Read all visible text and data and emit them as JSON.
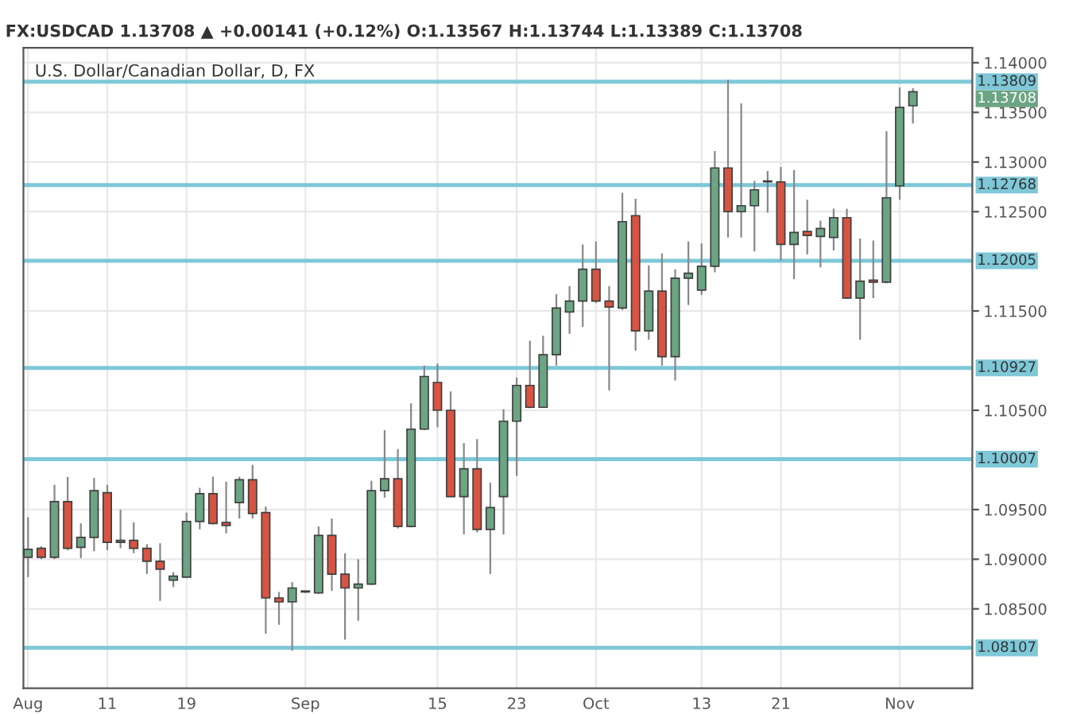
{
  "chart_data": {
    "type": "candlestick",
    "title": "U.S. Dollar/Canadian Dollar, D, FX",
    "subtitle": "FX:USDCAD 1.13708 ▲ +0.00141 (+0.12%) O:1.13567 H:1.13744 L:1.13389 C:1.13708",
    "categories": [
      "Aug",
      null,
      null,
      null,
      null,
      null,
      "11",
      null,
      null,
      null,
      null,
      null,
      "19",
      null,
      null,
      null,
      null,
      null,
      null,
      null,
      null,
      "Sep",
      null,
      null,
      null,
      null,
      null,
      null,
      null,
      null,
      null,
      "15",
      null,
      null,
      null,
      null,
      null,
      "23",
      null,
      null,
      null,
      null,
      null,
      "Oct",
      null,
      null,
      null,
      null,
      null,
      null,
      null,
      "13",
      null,
      null,
      null,
      null,
      null,
      "21",
      null,
      null,
      null,
      null,
      null,
      null,
      null,
      null,
      "Nov",
      null
    ],
    "ohlc": [
      [
        1.0902,
        1.0942,
        1.0882,
        1.091
      ],
      [
        1.0911,
        1.0913,
        1.09,
        1.0902
      ],
      [
        1.0902,
        1.0975,
        1.09,
        1.0958
      ],
      [
        1.0958,
        1.0983,
        1.0909,
        1.0911
      ],
      [
        1.0912,
        1.0936,
        1.0901,
        1.0922
      ],
      [
        1.0922,
        1.0982,
        1.0908,
        1.0969
      ],
      [
        1.0967,
        1.0975,
        1.0909,
        1.0917
      ],
      [
        1.0917,
        1.095,
        1.0911,
        1.0919
      ],
      [
        1.0919,
        1.0937,
        1.0906,
        1.0911
      ],
      [
        1.0911,
        1.0915,
        1.0885,
        1.0898
      ],
      [
        1.0898,
        1.0916,
        1.0858,
        1.089
      ],
      [
        1.0879,
        1.0887,
        1.0872,
        1.0883
      ],
      [
        1.0882,
        1.0947,
        1.0881,
        1.0938
      ],
      [
        1.0938,
        1.0972,
        1.093,
        1.0966
      ],
      [
        1.0966,
        1.0983,
        1.0935,
        1.0936
      ],
      [
        1.0937,
        1.0978,
        1.0926,
        1.0934
      ],
      [
        1.0957,
        1.0983,
        1.0941,
        1.098
      ],
      [
        1.098,
        1.0995,
        1.0941,
        1.0946
      ],
      [
        1.0947,
        1.0953,
        1.0825,
        1.0861
      ],
      [
        1.0861,
        1.0867,
        1.0834,
        1.0857
      ],
      [
        1.0857,
        1.0877,
        1.0808,
        1.0871
      ],
      [
        1.0867,
        1.0868,
        1.0866,
        1.0868
      ],
      [
        1.0866,
        1.0933,
        1.0865,
        1.0924
      ],
      [
        1.0924,
        1.0941,
        1.0868,
        1.0885
      ],
      [
        1.0885,
        1.0906,
        1.0819,
        1.0871
      ],
      [
        1.0871,
        1.09,
        1.0838,
        1.0875
      ],
      [
        1.0875,
        1.0979,
        1.0874,
        1.0969
      ],
      [
        1.0969,
        1.103,
        1.0962,
        1.0981
      ],
      [
        1.0981,
        1.1011,
        1.0931,
        1.0933
      ],
      [
        1.0933,
        1.1057,
        1.0932,
        1.1031
      ],
      [
        1.1031,
        1.1095,
        1.103,
        1.1084
      ],
      [
        1.1078,
        1.1097,
        1.1033,
        1.105
      ],
      [
        1.105,
        1.1069,
        1.0963,
        1.0963
      ],
      [
        1.0963,
        1.1017,
        1.0925,
        1.0991
      ],
      [
        1.0991,
        1.1021,
        1.0927,
        1.093
      ],
      [
        1.093,
        1.0977,
        1.0885,
        1.0952
      ],
      [
        1.0963,
        1.1051,
        1.0925,
        1.1039
      ],
      [
        1.1039,
        1.1083,
        1.0984,
        1.1075
      ],
      [
        1.1075,
        1.112,
        1.1052,
        1.1053
      ],
      [
        1.1053,
        1.1125,
        1.1053,
        1.1106
      ],
      [
        1.1106,
        1.1167,
        1.1095,
        1.1153
      ],
      [
        1.1149,
        1.1175,
        1.1127,
        1.116
      ],
      [
        1.116,
        1.1217,
        1.1134,
        1.1192
      ],
      [
        1.1192,
        1.122,
        1.1158,
        1.116
      ],
      [
        1.116,
        1.1175,
        1.107,
        1.1154
      ],
      [
        1.1153,
        1.1269,
        1.1151,
        1.124
      ],
      [
        1.1246,
        1.1263,
        1.111,
        1.113
      ],
      [
        1.113,
        1.1196,
        1.1121,
        1.117
      ],
      [
        1.117,
        1.1208,
        1.1095,
        1.1104
      ],
      [
        1.1104,
        1.1192,
        1.108,
        1.1183
      ],
      [
        1.1183,
        1.122,
        1.1156,
        1.1188
      ],
      [
        1.1171,
        1.1218,
        1.1166,
        1.1195
      ],
      [
        1.1195,
        1.1311,
        1.1189,
        1.1294
      ],
      [
        1.1294,
        1.1383,
        1.1224,
        1.125
      ],
      [
        1.125,
        1.1359,
        1.1224,
        1.1256
      ],
      [
        1.1256,
        1.1281,
        1.121,
        1.1272
      ],
      [
        1.128,
        1.1291,
        1.1249,
        1.1281
      ],
      [
        1.128,
        1.1295,
        1.1201,
        1.1217
      ],
      [
        1.1217,
        1.1292,
        1.1182,
        1.1229
      ],
      [
        1.123,
        1.1262,
        1.1207,
        1.1226
      ],
      [
        1.1225,
        1.1241,
        1.1194,
        1.1233
      ],
      [
        1.1224,
        1.1253,
        1.1211,
        1.1244
      ],
      [
        1.1244,
        1.1253,
        1.1162,
        1.1163
      ],
      [
        1.1163,
        1.1223,
        1.1121,
        1.118
      ],
      [
        1.1181,
        1.1221,
        1.1163,
        1.1179
      ],
      [
        1.1179,
        1.1331,
        1.1178,
        1.1264
      ],
      [
        1.1276,
        1.1375,
        1.1262,
        1.1355
      ],
      [
        1.13567,
        1.13744,
        1.13389,
        1.13708
      ]
    ],
    "colors": [
      "#6ba583",
      "#d75442",
      "#6ba583",
      "#d75442",
      "#6ba583",
      "#6ba583",
      "#d75442",
      "#6ba583",
      "#d75442",
      "#d75442",
      "#d75442",
      "#6ba583",
      "#6ba583",
      "#6ba583",
      "#d75442",
      "#d75442",
      "#6ba583",
      "#d75442",
      "#d75442",
      "#d75442",
      "#6ba583",
      "#6ba583",
      "#6ba583",
      "#d75442",
      "#d75442",
      "#6ba583",
      "#6ba583",
      "#6ba583",
      "#d75442",
      "#6ba583",
      "#6ba583",
      "#d75442",
      "#d75442",
      "#6ba583",
      "#d75442",
      "#6ba583",
      "#6ba583",
      "#6ba583",
      "#d75442",
      "#6ba583",
      "#6ba583",
      "#6ba583",
      "#6ba583",
      "#d75442",
      "#d75442",
      "#6ba583",
      "#d75442",
      "#6ba583",
      "#d75442",
      "#6ba583",
      "#6ba583",
      "#6ba583",
      "#6ba583",
      "#d75442",
      "#6ba583",
      "#6ba583",
      "#6ba583",
      "#d75442",
      "#6ba583",
      "#d75442",
      "#6ba583",
      "#6ba583",
      "#d75442",
      "#6ba583",
      "#d75442",
      "#6ba583",
      "#6ba583",
      "#6ba583"
    ],
    "ylim": [
      1.077,
      1.1415
    ],
    "yticks": [
      {
        "value": 1.085,
        "label": "1.08500"
      },
      {
        "value": 1.09,
        "label": "1.09000"
      },
      {
        "value": 1.095,
        "label": "1.09500"
      },
      {
        "value": 1.105,
        "label": "1.10500"
      },
      {
        "value": 1.115,
        "label": "1.11500"
      },
      {
        "value": 1.125,
        "label": "1.12500"
      },
      {
        "value": 1.13,
        "label": "1.13000"
      },
      {
        "value": 1.135,
        "label": "1.13500"
      },
      {
        "value": 1.14,
        "label": "1.14000"
      }
    ],
    "ref_lines": [
      {
        "axis": "y",
        "value": 1.13809,
        "label": "1.13809",
        "color": "#7ec8d8"
      },
      {
        "axis": "y",
        "value": 1.12768,
        "label": "1.12768",
        "color": "#7ec8d8"
      },
      {
        "axis": "y",
        "value": 1.12005,
        "label": "1.12005",
        "color": "#7ec8d8"
      },
      {
        "axis": "y",
        "value": 1.10927,
        "label": "1.10927",
        "color": "#7ec8d8"
      },
      {
        "axis": "y",
        "value": 1.10007,
        "label": "1.10007",
        "color": "#7ec8d8"
      },
      {
        "axis": "y",
        "value": 1.08107,
        "label": "1.08107",
        "color": "#7ec8d8"
      }
    ],
    "annotations": [
      "1.13708"
    ],
    "grid": true
  }
}
